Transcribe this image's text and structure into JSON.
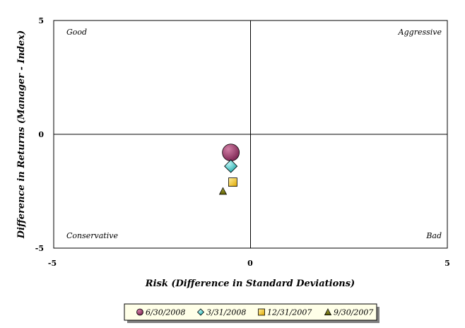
{
  "chart_data": {
    "type": "scatter",
    "xlabel": "Risk (Difference in Standard Deviations)",
    "ylabel": "Difference in Returns (Manager - Index)",
    "xlim": [
      -5,
      5
    ],
    "ylim": [
      -5,
      5
    ],
    "x_ticks": [
      "-5",
      "0",
      "5"
    ],
    "y_ticks": [
      "-5",
      "0",
      "5"
    ],
    "grid": false,
    "quadrant_labels": {
      "top_left": "Good",
      "top_right": "Aggressive",
      "bottom_left": "Conservative",
      "bottom_right": "Bad"
    },
    "legend_position": "bottom",
    "series": [
      {
        "name": "6/30/2008",
        "x": -0.5,
        "y": -0.8,
        "marker": "circle",
        "color": "#993366"
      },
      {
        "name": "3/31/2008",
        "x": -0.5,
        "y": -1.4,
        "marker": "diamond",
        "color": "#33CCCC"
      },
      {
        "name": "12/31/2007",
        "x": -0.45,
        "y": -2.1,
        "marker": "square",
        "color": "#FFCC00"
      },
      {
        "name": "9/30/2007",
        "x": -0.7,
        "y": -2.5,
        "marker": "triangle",
        "color": "#808000"
      }
    ]
  }
}
